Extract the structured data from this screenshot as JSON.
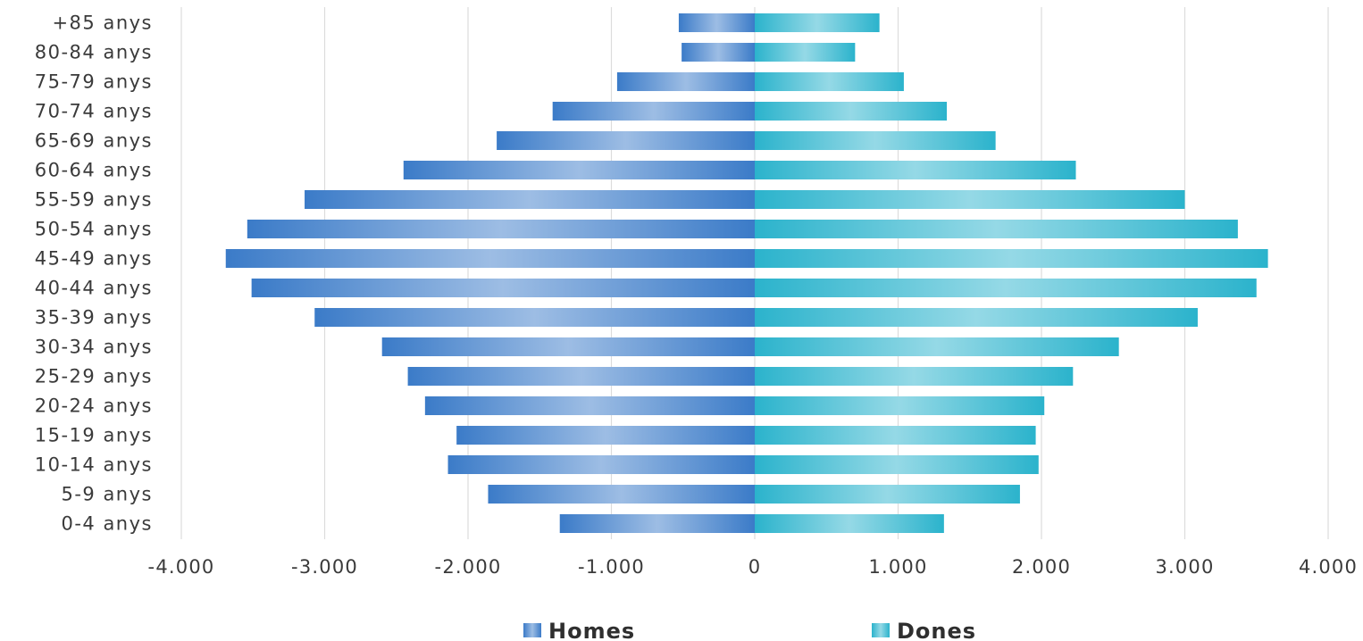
{
  "chart_data": {
    "type": "bar",
    "orientation": "horizontal",
    "stacked": "diverging",
    "categories": [
      "+85 anys",
      "80-84 anys",
      "75-79 anys",
      "70-74 anys",
      "65-69 anys",
      "60-64 anys",
      "55-59 anys",
      "50-54 anys",
      "45-49 anys",
      "40-44 anys",
      "35-39 anys",
      "30-34 anys",
      "25-29 anys",
      "20-24 anys",
      "15-19 anys",
      "10-14 anys",
      "5-9 anys",
      "0-4 anys"
    ],
    "series": [
      {
        "name": "Homes",
        "color": "#3b7bc8",
        "values": [
          -530,
          -510,
          -960,
          -1410,
          -1800,
          -2450,
          -3140,
          -3540,
          -3690,
          -3510,
          -3070,
          -2600,
          -2420,
          -2300,
          -2080,
          -2140,
          -1860,
          -1360
        ]
      },
      {
        "name": "Dones",
        "color": "#2bb3cc",
        "values": [
          870,
          700,
          1040,
          1340,
          1680,
          2240,
          3000,
          3370,
          3580,
          3500,
          3090,
          2540,
          2220,
          2020,
          1960,
          1980,
          1850,
          1320
        ]
      }
    ],
    "xlim": [
      -4000,
      4000
    ],
    "xticks": [
      -4000,
      -3000,
      -2000,
      -1000,
      0,
      1000,
      2000,
      3000,
      4000
    ],
    "xtick_labels": [
      "-4.000",
      "-3.000",
      "-2.000",
      "-1.000",
      "0",
      "1.000",
      "2.000",
      "3.000",
      "4.000"
    ],
    "grid": true,
    "legend_position": "bottom",
    "title": "",
    "xlabel": "",
    "ylabel": ""
  }
}
